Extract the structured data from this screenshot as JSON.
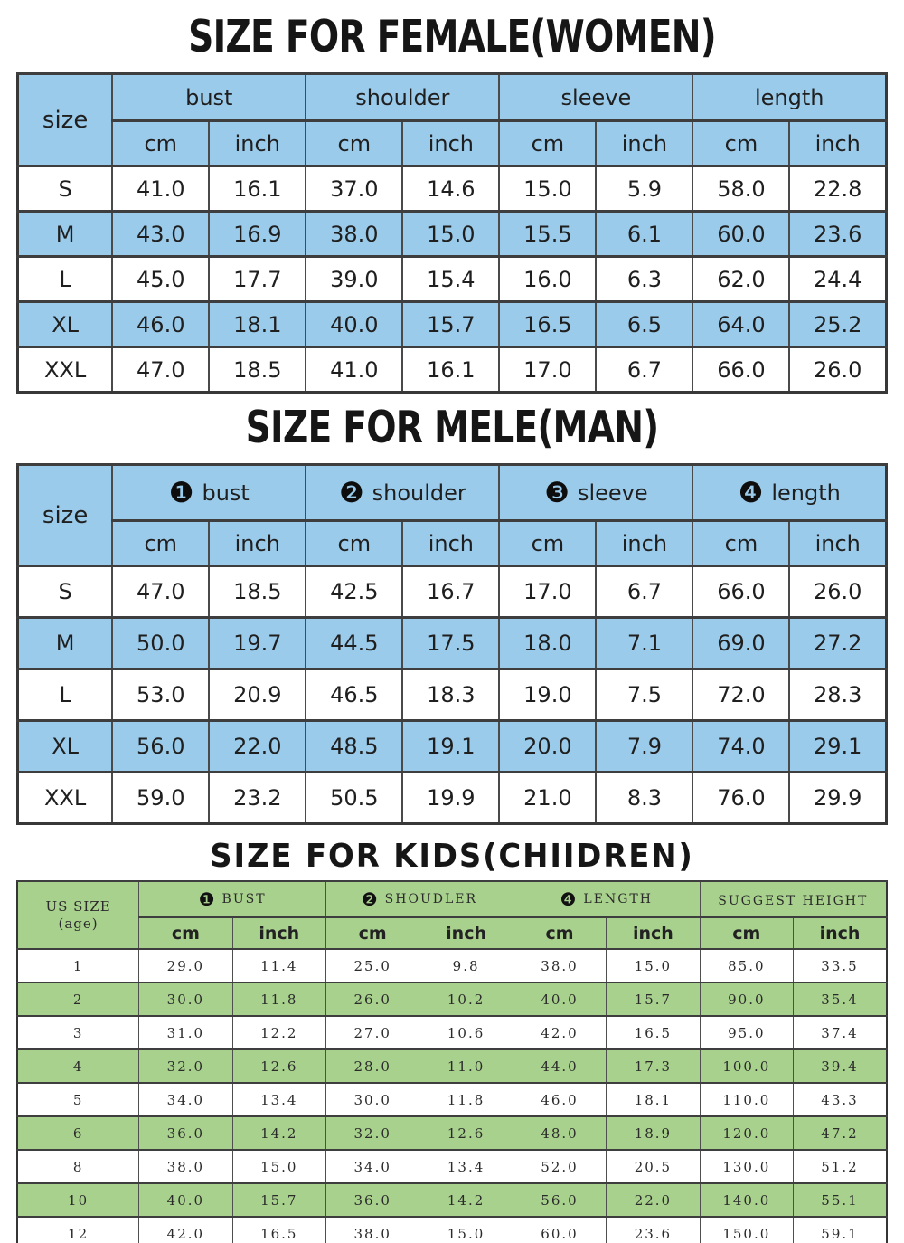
{
  "colors": {
    "blue_accent": "#9BCBEB",
    "green_accent": "#A9D18E",
    "border_dark": "#3E3E3E",
    "text": "#1F1F1F",
    "background": "#FFFFFF"
  },
  "sections": [
    {
      "id": "women",
      "title": "SIZE FOR FEMALE(WOMEN)",
      "table": {
        "corner_label": "size",
        "groups": [
          {
            "badge": "",
            "label": "bust"
          },
          {
            "badge": "",
            "label": "shoulder"
          },
          {
            "badge": "",
            "label": "sleeve"
          },
          {
            "badge": "",
            "label": "length"
          }
        ],
        "subheaders": [
          "cm",
          "inch",
          "cm",
          "inch",
          "cm",
          "inch",
          "cm",
          "inch"
        ],
        "rows": [
          {
            "label": "S",
            "values": [
              "41.0",
              "16.1",
              "37.0",
              "14.6",
              "15.0",
              "5.9",
              "58.0",
              "22.8"
            ]
          },
          {
            "label": "M",
            "values": [
              "43.0",
              "16.9",
              "38.0",
              "15.0",
              "15.5",
              "6.1",
              "60.0",
              "23.6"
            ]
          },
          {
            "label": "L",
            "values": [
              "45.0",
              "17.7",
              "39.0",
              "15.4",
              "16.0",
              "6.3",
              "62.0",
              "24.4"
            ]
          },
          {
            "label": "XL",
            "values": [
              "46.0",
              "18.1",
              "40.0",
              "15.7",
              "16.5",
              "6.5",
              "64.0",
              "25.2"
            ]
          },
          {
            "label": "XXL",
            "values": [
              "47.0",
              "18.5",
              "41.0",
              "16.1",
              "17.0",
              "6.7",
              "66.0",
              "26.0"
            ]
          }
        ]
      }
    },
    {
      "id": "men",
      "title": "SIZE FOR MELE(MAN)",
      "table": {
        "corner_label": "size",
        "groups": [
          {
            "badge": "❶",
            "label": "bust"
          },
          {
            "badge": "❷",
            "label": "shoulder"
          },
          {
            "badge": "❸",
            "label": "sleeve"
          },
          {
            "badge": "❹",
            "label": "length"
          }
        ],
        "subheaders": [
          "cm",
          "inch",
          "cm",
          "inch",
          "cm",
          "inch",
          "cm",
          "inch"
        ],
        "rows": [
          {
            "label": "S",
            "values": [
              "47.0",
              "18.5",
              "42.5",
              "16.7",
              "17.0",
              "6.7",
              "66.0",
              "26.0"
            ]
          },
          {
            "label": "M",
            "values": [
              "50.0",
              "19.7",
              "44.5",
              "17.5",
              "18.0",
              "7.1",
              "69.0",
              "27.2"
            ]
          },
          {
            "label": "L",
            "values": [
              "53.0",
              "20.9",
              "46.5",
              "18.3",
              "19.0",
              "7.5",
              "72.0",
              "28.3"
            ]
          },
          {
            "label": "XL",
            "values": [
              "56.0",
              "22.0",
              "48.5",
              "19.1",
              "20.0",
              "7.9",
              "74.0",
              "29.1"
            ]
          },
          {
            "label": "XXL",
            "values": [
              "59.0",
              "23.2",
              "50.5",
              "19.9",
              "21.0",
              "8.3",
              "76.0",
              "29.9"
            ]
          }
        ]
      }
    },
    {
      "id": "kids",
      "title": "SIZE FOR KIDS(CHIIDREN)",
      "table": {
        "corner_label": "US SIZE",
        "corner_label_sub": "(age)",
        "groups": [
          {
            "badge": "❶",
            "label": "BUST"
          },
          {
            "badge": "❷",
            "label": "SHOUDLER"
          },
          {
            "badge": "❹",
            "label": "LENGTH"
          },
          {
            "badge": "",
            "label": "SUGGEST HEIGHT"
          }
        ],
        "subheaders": [
          "cm",
          "inch",
          "cm",
          "inch",
          "cm",
          "inch",
          "cm",
          "inch"
        ],
        "rows": [
          {
            "label": "1",
            "values": [
              "29.0",
              "11.4",
              "25.0",
              "9.8",
              "38.0",
              "15.0",
              "85.0",
              "33.5"
            ]
          },
          {
            "label": "2",
            "values": [
              "30.0",
              "11.8",
              "26.0",
              "10.2",
              "40.0",
              "15.7",
              "90.0",
              "35.4"
            ]
          },
          {
            "label": "3",
            "values": [
              "31.0",
              "12.2",
              "27.0",
              "10.6",
              "42.0",
              "16.5",
              "95.0",
              "37.4"
            ]
          },
          {
            "label": "4",
            "values": [
              "32.0",
              "12.6",
              "28.0",
              "11.0",
              "44.0",
              "17.3",
              "100.0",
              "39.4"
            ]
          },
          {
            "label": "5",
            "values": [
              "34.0",
              "13.4",
              "30.0",
              "11.8",
              "46.0",
              "18.1",
              "110.0",
              "43.3"
            ]
          },
          {
            "label": "6",
            "values": [
              "36.0",
              "14.2",
              "32.0",
              "12.6",
              "48.0",
              "18.9",
              "120.0",
              "47.2"
            ]
          },
          {
            "label": "8",
            "values": [
              "38.0",
              "15.0",
              "34.0",
              "13.4",
              "52.0",
              "20.5",
              "130.0",
              "51.2"
            ]
          },
          {
            "label": "10",
            "values": [
              "40.0",
              "15.7",
              "36.0",
              "14.2",
              "56.0",
              "22.0",
              "140.0",
              "55.1"
            ]
          },
          {
            "label": "12",
            "values": [
              "42.0",
              "16.5",
              "38.0",
              "15.0",
              "60.0",
              "23.6",
              "150.0",
              "59.1"
            ]
          }
        ]
      }
    }
  ]
}
